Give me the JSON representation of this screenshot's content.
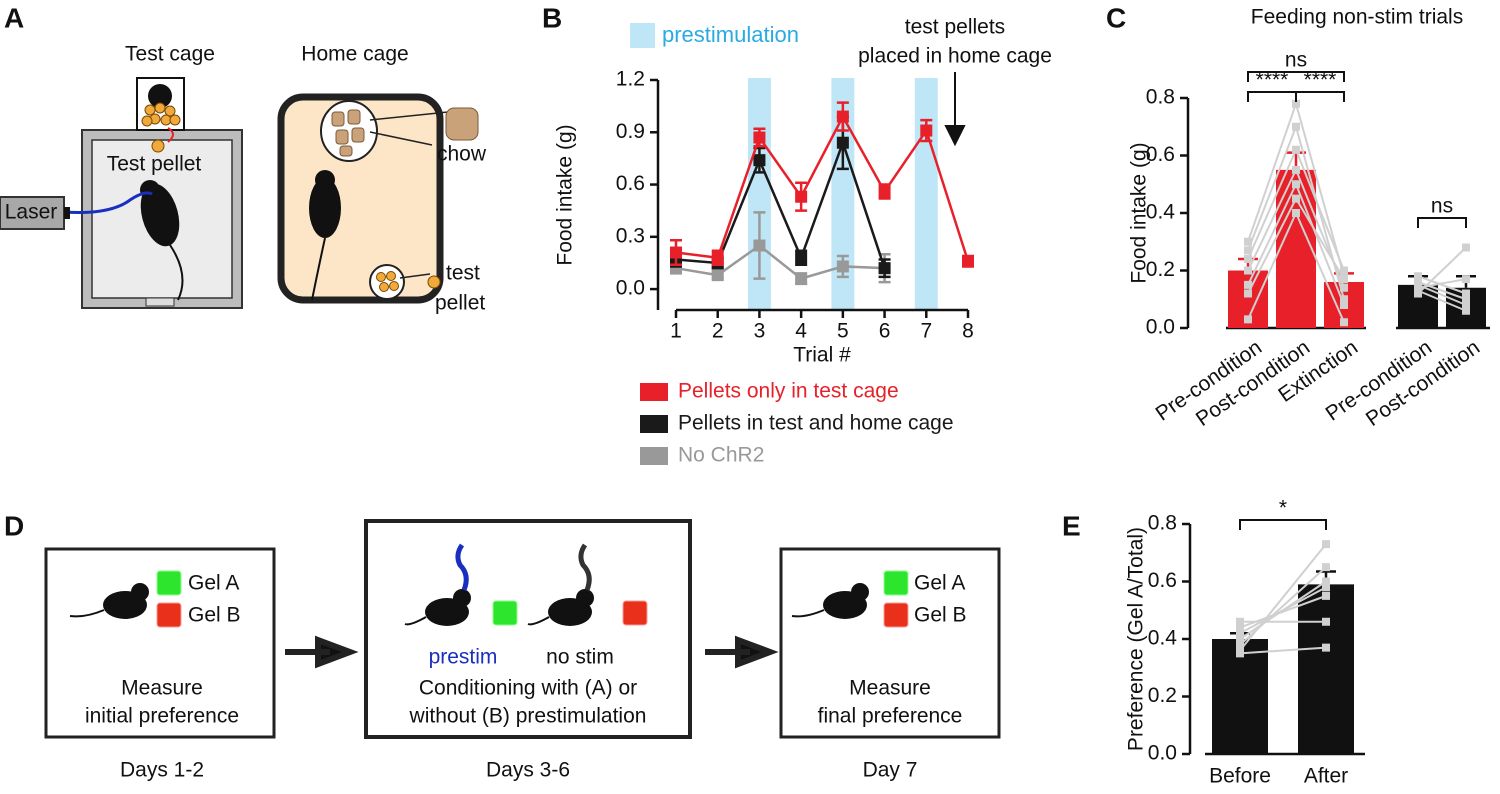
{
  "panel_labels": [
    "A",
    "B",
    "C",
    "D",
    "E"
  ],
  "panel_a": {
    "test_cage": "Test cage",
    "home_cage": "Home cage",
    "test_pellet": "Test pellet",
    "laser": "Laser",
    "chow": "chow",
    "test_pellet_home": [
      "test",
      "pellet"
    ]
  },
  "panel_d": {
    "steps": [
      {
        "gels": [
          "Gel A",
          "Gel B"
        ],
        "title": [
          "Measure",
          "initial preference"
        ],
        "days": "Days 1-2"
      },
      {
        "prestim": "prestim",
        "no_stim": "no stim",
        "title": [
          "Conditioning with (A) or",
          "without (B) prestimulation"
        ],
        "days": "Days 3-6"
      },
      {
        "gels": [
          "Gel A",
          "Gel B"
        ],
        "title": [
          "Measure",
          "final preference"
        ],
        "days": "Day 7"
      }
    ]
  },
  "chart_data": [
    {
      "type": "line",
      "ylabel": "Food intake (g)",
      "xlabel": "Trial #",
      "x": [
        1,
        2,
        3,
        4,
        5,
        6,
        7,
        8
      ],
      "xlim": [
        1,
        8
      ],
      "xticks": [
        1,
        2,
        3,
        4,
        5,
        6,
        7,
        8
      ],
      "ylim": [
        -0.12,
        1.2
      ],
      "yticks": [
        {
          "value": 0,
          "label": "0.0"
        },
        0.3,
        0.6,
        0.9,
        1.2
      ],
      "shaded": {
        "name": "prestimulation",
        "color": "#bfe6f6",
        "x": [
          3,
          5,
          7
        ]
      },
      "annotation": [
        "test pellets",
        "placed in home cage"
      ],
      "series": [
        {
          "name": "Pellets only in test cage",
          "color": "#e8202a",
          "values": [
            0.21,
            0.18,
            0.87,
            0.53,
            0.99,
            0.56,
            0.91,
            0.16
          ],
          "errors": [
            0.07,
            0.04,
            0.05,
            0.08,
            0.08,
            0.04,
            0.06,
            0.03
          ]
        },
        {
          "name": "Pellets in test and home cage",
          "color": "#1a1a1a",
          "values": [
            0.17,
            0.15,
            0.74,
            0.18,
            0.84,
            0.12,
            null,
            null
          ],
          "errors": [
            0.04,
            0.03,
            0.07,
            0.04,
            0.15,
            0.05,
            null,
            null
          ]
        },
        {
          "name": "No ChR2",
          "color": "#999999",
          "values": [
            0.12,
            0.08,
            0.25,
            0.06,
            0.13,
            0.12,
            null,
            null
          ],
          "errors": [
            0.03,
            0.02,
            0.19,
            0.03,
            0.06,
            0.08,
            null,
            null
          ]
        }
      ]
    },
    {
      "type": "bar",
      "title": "Feeding non-stim trials",
      "ylabel": "Food intake (g)",
      "categories": [
        "Pre-condition",
        "Post-condition",
        "Extinction",
        "Pre-condition",
        "Post-condition"
      ],
      "values": [
        0.2,
        0.55,
        0.16,
        0.15,
        0.14
      ],
      "errors": [
        0.04,
        0.06,
        0.03,
        0.03,
        0.04
      ],
      "colors": [
        "#e8202a",
        "#e8202a",
        "#e8202a",
        "#111111",
        "#111111"
      ],
      "individual_values": [
        [
          0.3,
          0.78,
          0.18,
          null,
          null
        ],
        [
          0.27,
          0.7,
          0.1,
          null,
          null
        ],
        [
          0.24,
          0.62,
          0.2,
          null,
          null
        ],
        [
          0.2,
          0.55,
          0.14,
          null,
          null
        ],
        [
          0.15,
          0.5,
          0.08,
          null,
          null
        ],
        [
          0.12,
          0.45,
          0.17,
          null,
          null
        ],
        [
          0.03,
          0.4,
          0.02,
          null,
          null
        ],
        [
          null,
          null,
          null,
          0.15,
          0.08
        ],
        [
          null,
          null,
          null,
          0.18,
          0.12
        ],
        [
          null,
          null,
          null,
          0.12,
          0.28
        ],
        [
          null,
          null,
          null,
          0.16,
          0.1
        ],
        [
          null,
          null,
          null,
          0.14,
          0.17
        ],
        [
          null,
          null,
          null,
          0.13,
          0.06
        ]
      ],
      "ylim": [
        0,
        0.8
      ],
      "yticks": [
        {
          "value": 0,
          "label": "0.0"
        },
        0.2,
        0.4,
        0.6,
        0.8
      ],
      "significance": [
        {
          "from": 0,
          "to": 2,
          "label": "ns"
        },
        {
          "from": 0,
          "to": 1,
          "label": "****"
        },
        {
          "from": 1,
          "to": 2,
          "label": "****"
        },
        {
          "from": 3,
          "to": 4,
          "label": "ns"
        }
      ]
    },
    {
      "type": "bar",
      "ylabel": "Preference (Gel A/Total)",
      "categories": [
        "Before",
        "After"
      ],
      "values": [
        0.4,
        0.59
      ],
      "errors": [
        0.02,
        0.045
      ],
      "colors": [
        "#111111",
        "#111111"
      ],
      "individual_values": [
        [
          0.36,
          0.73
        ],
        [
          0.38,
          0.65
        ],
        [
          0.4,
          0.6
        ],
        [
          0.42,
          0.58
        ],
        [
          0.44,
          0.55
        ],
        [
          0.46,
          0.46
        ],
        [
          0.35,
          0.37
        ]
      ],
      "ylim": [
        0,
        0.8
      ],
      "yticks": [
        {
          "value": 0,
          "label": "0.0"
        },
        0.2,
        0.4,
        0.6,
        0.8
      ],
      "significance": [
        {
          "from": 0,
          "to": 1,
          "label": "*"
        }
      ]
    }
  ]
}
